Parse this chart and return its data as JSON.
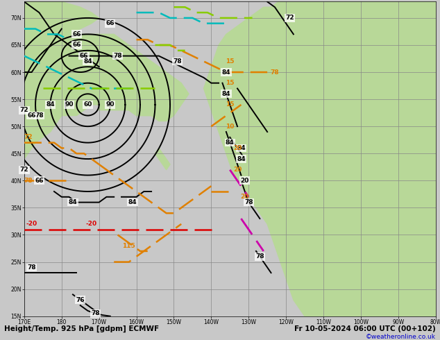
{
  "title_left": "Height/Temp. 925 hPa [gdpm] ECMWF",
  "title_right": "Fr 10-05-2024 06:00 UTC (00+102)",
  "copyright": "©weatheronline.co.uk",
  "land_color": "#b8d898",
  "ocean_color": "#c8c8c8",
  "fig_bg": "#c8c8c8",
  "grid_color": "#888888",
  "figsize": [
    6.34,
    4.9
  ],
  "dpi": 100,
  "black_lw": 1.4,
  "orange_lw": 1.8,
  "red_lw": 1.8,
  "magenta_lw": 2.0,
  "cyan_lw": 1.8,
  "ygreen_lw": 1.8,
  "orange": "#e08000",
  "red": "#dd0000",
  "magenta": "#cc00aa",
  "cyan": "#00bbbb",
  "ygreen": "#88cc00",
  "title_fontsize": 7.5,
  "label_fontsize": 6.5,
  "tick_fontsize": 5.5
}
